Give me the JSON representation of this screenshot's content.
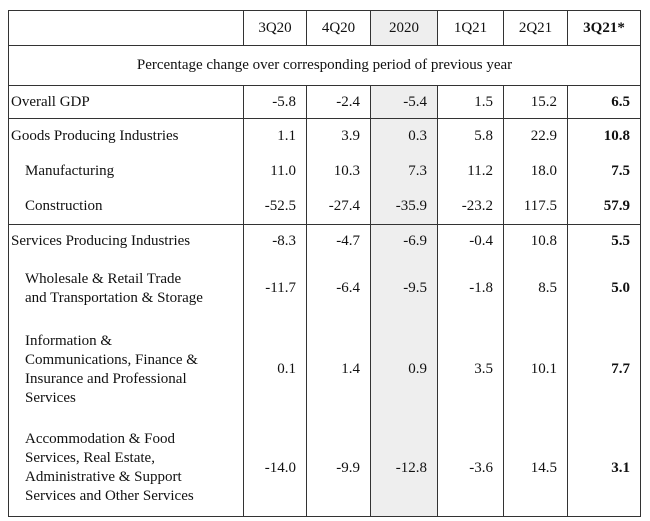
{
  "table": {
    "columns": [
      "3Q20",
      "4Q20",
      "2020",
      "1Q21",
      "2Q21",
      "3Q21*"
    ],
    "subheader": "Percentage change over corresponding period of previous year",
    "rows": [
      {
        "label": [
          "Overall GDP"
        ],
        "values": [
          "-5.8",
          "-2.4",
          "-5.4",
          "1.5",
          "15.2",
          "6.5"
        ]
      },
      {
        "label": [
          "Goods Producing Industries"
        ],
        "values": [
          "1.1",
          "3.9",
          "0.3",
          "5.8",
          "22.9",
          "10.8"
        ]
      },
      {
        "label": [
          "Manufacturing"
        ],
        "values": [
          "11.0",
          "10.3",
          "7.3",
          "11.2",
          "18.0",
          "7.5"
        ]
      },
      {
        "label": [
          "Construction"
        ],
        "values": [
          "-52.5",
          "-27.4",
          "-35.9",
          "-23.2",
          "117.5",
          "57.9"
        ]
      },
      {
        "label": [
          "Services Producing Industries"
        ],
        "values": [
          "-8.3",
          "-4.7",
          "-6.9",
          "-0.4",
          "10.8",
          "5.5"
        ]
      },
      {
        "label": [
          "Wholesale & Retail Trade",
          "and Transportation & Storage"
        ],
        "values": [
          "-11.7",
          "-6.4",
          "-9.5",
          "-1.8",
          "8.5",
          "5.0"
        ]
      },
      {
        "label": [
          "Information &",
          "Communications, Finance &",
          "Insurance and Professional",
          "Services"
        ],
        "values": [
          "0.1",
          "1.4",
          "0.9",
          "3.5",
          "10.1",
          "7.7"
        ]
      },
      {
        "label": [
          "Accommodation & Food",
          "Services, Real Estate,",
          "Administrative & Support",
          "Services and Other Services"
        ],
        "values": [
          "-14.0",
          "-9.9",
          "-12.8",
          "-3.6",
          "14.5",
          "3.1"
        ]
      }
    ]
  }
}
